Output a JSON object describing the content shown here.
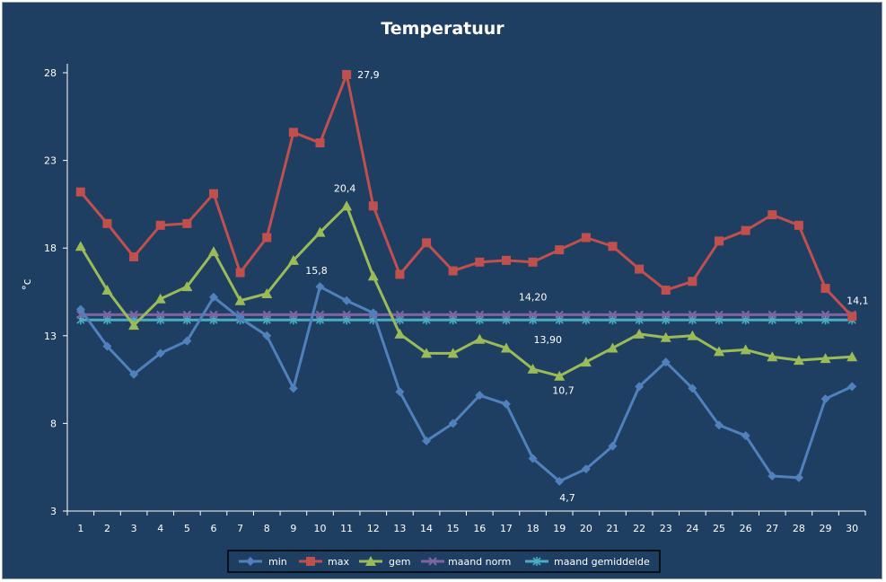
{
  "chart_data": {
    "type": "line",
    "title": "Temperatuur",
    "xlabel": "",
    "ylabel": "°c",
    "ylim": [
      3,
      28
    ],
    "yticks": [
      3,
      8,
      13,
      18,
      23,
      28
    ],
    "x": [
      1,
      2,
      3,
      4,
      5,
      6,
      7,
      8,
      9,
      10,
      11,
      12,
      13,
      14,
      15,
      16,
      17,
      18,
      19,
      20,
      21,
      22,
      23,
      24,
      25,
      26,
      27,
      28,
      29,
      30
    ],
    "grid": false,
    "legend": "bottom",
    "series": [
      {
        "name": "min",
        "color": "#4f81bd",
        "marker": "diamond",
        "values": [
          14.5,
          12.4,
          10.8,
          12.0,
          12.7,
          15.2,
          14.0,
          13.0,
          10.0,
          15.8,
          15.0,
          14.3,
          9.8,
          7.0,
          8.0,
          9.6,
          9.1,
          6.0,
          4.7,
          5.4,
          6.7,
          10.1,
          11.5,
          10.0,
          7.9,
          7.3,
          5.0,
          4.9,
          9.4,
          10.1
        ],
        "labels": [
          {
            "x": 10,
            "text": "15,8"
          },
          {
            "x": 19,
            "text": "4,7"
          }
        ]
      },
      {
        "name": "max",
        "color": "#c0504d",
        "marker": "square",
        "values": [
          21.2,
          19.4,
          17.5,
          19.3,
          19.4,
          21.1,
          16.6,
          18.6,
          24.6,
          24.0,
          27.9,
          20.4,
          16.5,
          18.3,
          16.7,
          17.2,
          17.3,
          17.2,
          17.9,
          18.6,
          18.1,
          16.8,
          15.6,
          16.1,
          18.4,
          19.0,
          19.9,
          19.3,
          15.7,
          14.1
        ],
        "labels": [
          {
            "x": 11,
            "text": "27,9"
          },
          {
            "x": 30,
            "text": "14,1"
          }
        ]
      },
      {
        "name": "gem",
        "color": "#9bbb59",
        "marker": "triangle",
        "values": [
          18.1,
          15.6,
          13.6,
          15.1,
          15.8,
          17.8,
          15.0,
          15.4,
          17.3,
          18.9,
          20.4,
          16.4,
          13.1,
          12.0,
          12.0,
          12.8,
          12.3,
          11.1,
          10.7,
          11.5,
          12.3,
          13.1,
          12.9,
          13.0,
          12.1,
          12.2,
          11.8,
          11.6,
          11.7,
          11.8
        ],
        "labels": [
          {
            "x": 11,
            "text": "20,4"
          },
          {
            "x": 19,
            "text": "10,7"
          }
        ]
      },
      {
        "name": "maand norm",
        "color": "#8064a2",
        "marker": "x",
        "values": [
          14.2,
          14.2,
          14.2,
          14.2,
          14.2,
          14.2,
          14.2,
          14.2,
          14.2,
          14.2,
          14.2,
          14.2,
          14.2,
          14.2,
          14.2,
          14.2,
          14.2,
          14.2,
          14.2,
          14.2,
          14.2,
          14.2,
          14.2,
          14.2,
          14.2,
          14.2,
          14.2,
          14.2,
          14.2,
          14.2
        ],
        "labels": [
          {
            "x": 18,
            "text": "14,20"
          }
        ]
      },
      {
        "name": "maand gemiddelde",
        "color": "#4bacc6",
        "marker": "star",
        "values": [
          13.9,
          13.9,
          13.9,
          13.9,
          13.9,
          13.9,
          13.9,
          13.9,
          13.9,
          13.9,
          13.9,
          13.9,
          13.9,
          13.9,
          13.9,
          13.9,
          13.9,
          13.9,
          13.9,
          13.9,
          13.9,
          13.9,
          13.9,
          13.9,
          13.9,
          13.9,
          13.9,
          13.9,
          13.9,
          13.9
        ],
        "labels": [
          {
            "x": 19,
            "text": "13,90"
          }
        ]
      }
    ]
  }
}
